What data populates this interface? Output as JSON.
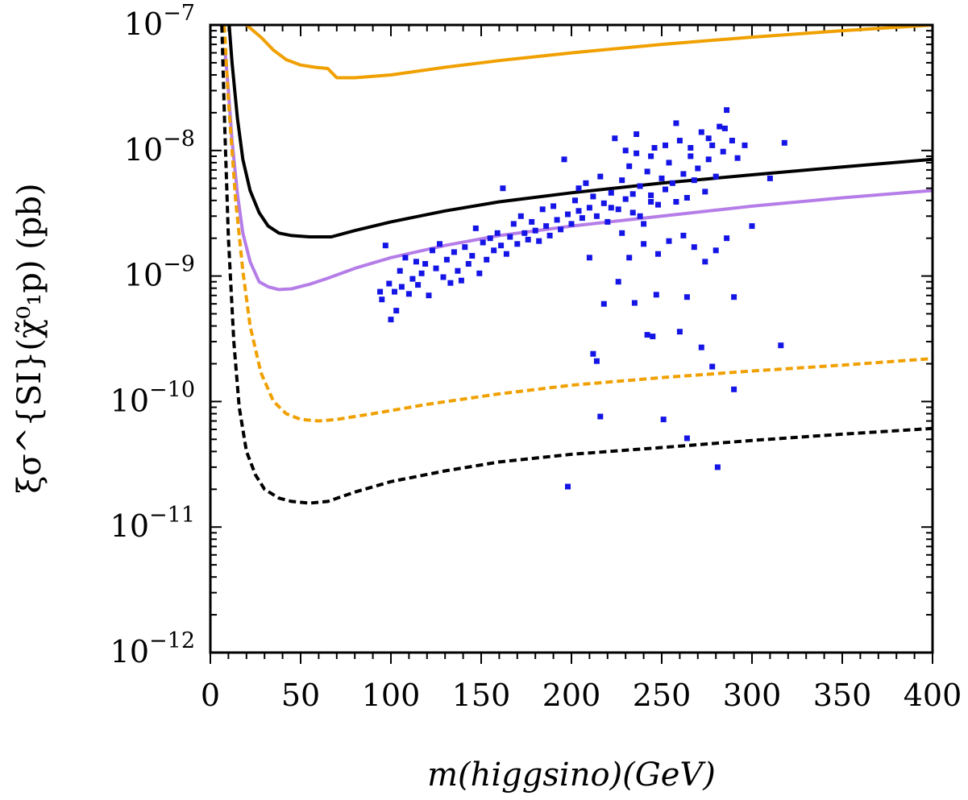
{
  "chart_data": {
    "type": "scatter",
    "xlabel": "m(higgsino)(GeV)",
    "ylabel": "ξσ^{SI}(χ̃⁰₁p) (pb)",
    "xlim": [
      0,
      400
    ],
    "ylim": [
      1e-12,
      1e-07
    ],
    "yscale": "log",
    "x_ticks": [
      0,
      50,
      100,
      150,
      200,
      250,
      300,
      350,
      400
    ],
    "x_tick_labels": [
      "0",
      "50",
      "100",
      "150",
      "200",
      "250",
      "300",
      "350",
      "400"
    ],
    "y_ticks": [
      {
        "value": 1e-12,
        "base": "10",
        "exp": "−12"
      },
      {
        "value": 1e-11,
        "base": "10",
        "exp": "−11"
      },
      {
        "value": 1e-10,
        "base": "10",
        "exp": "−10"
      },
      {
        "value": 1e-09,
        "base": "10",
        "exp": "−9"
      },
      {
        "value": 1e-08,
        "base": "10",
        "exp": "−8"
      },
      {
        "value": 1e-07,
        "base": "10",
        "exp": "−7"
      }
    ],
    "series": [
      {
        "name": "orange-solid",
        "type": "line",
        "color": "#f0a000",
        "dashed": false,
        "x": [
          8,
          14,
          20,
          28,
          35,
          42,
          50,
          58,
          65,
          70,
          80,
          100,
          130,
          160,
          200,
          250,
          300,
          350,
          400
        ],
        "y": [
          1.5e-07,
          1.2e-07,
          1e-07,
          8e-08,
          6.3e-08,
          5.3e-08,
          4.8e-08,
          4.6e-08,
          4.5e-08,
          3.8e-08,
          3.8e-08,
          4e-08,
          4.6e-08,
          5.2e-08,
          6e-08,
          7e-08,
          8e-08,
          9e-08,
          1e-07
        ]
      },
      {
        "name": "black-solid",
        "type": "line",
        "color": "#000000",
        "dashed": false,
        "x": [
          10,
          12,
          15,
          18,
          22,
          27,
          32,
          38,
          45,
          55,
          67,
          80,
          100,
          130,
          160,
          200,
          250,
          300,
          350,
          400
        ],
        "y": [
          1.2e-07,
          5e-08,
          1.8e-08,
          8.5e-09,
          4.8e-09,
          3.2e-09,
          2.5e-09,
          2.2e-09,
          2.1e-09,
          2.05e-09,
          2.05e-09,
          2.3e-09,
          2.7e-09,
          3.3e-09,
          3.9e-09,
          4.6e-09,
          5.5e-09,
          6.4e-09,
          7.4e-09,
          8.5e-09
        ]
      },
      {
        "name": "purple-solid",
        "type": "line",
        "color": "#b57de8",
        "dashed": false,
        "x": [
          8,
          10,
          12,
          15,
          18,
          22,
          27,
          32,
          38,
          45,
          55,
          65,
          80,
          100,
          130,
          160,
          200,
          250,
          300,
          350,
          400
        ],
        "y": [
          6.5e-08,
          3e-08,
          1.2e-08,
          4.5e-09,
          2.2e-09,
          1.3e-09,
          9e-10,
          8.2e-10,
          7.8e-10,
          7.9e-10,
          8.6e-10,
          9.6e-10,
          1.15e-09,
          1.4e-09,
          1.75e-09,
          2.1e-09,
          2.5e-09,
          3e-09,
          3.6e-09,
          4.2e-09,
          4.8e-09
        ]
      },
      {
        "name": "orange-dashed",
        "type": "line",
        "color": "#f0a000",
        "dashed": true,
        "x": [
          7,
          10,
          14,
          18,
          22,
          28,
          35,
          42,
          50,
          60,
          70,
          90,
          120,
          160,
          200,
          250,
          300,
          350,
          400
        ],
        "y": [
          1.5e-07,
          2.5e-08,
          4e-09,
          1.1e-09,
          4e-10,
          1.7e-10,
          1e-10,
          8e-11,
          7.2e-11,
          7e-11,
          7.2e-11,
          8e-11,
          9.5e-11,
          1.15e-10,
          1.35e-10,
          1.55e-10,
          1.75e-10,
          1.95e-10,
          2.2e-10
        ]
      },
      {
        "name": "black-dashed",
        "type": "line",
        "color": "#000000",
        "dashed": true,
        "x": [
          6,
          8,
          10,
          13,
          16,
          20,
          25,
          30,
          38,
          45,
          55,
          65,
          80,
          100,
          130,
          160,
          200,
          250,
          300,
          350,
          400
        ],
        "y": [
          1.5e-07,
          1.5e-08,
          2e-09,
          3e-10,
          9e-11,
          4e-11,
          2.6e-11,
          2e-11,
          1.7e-11,
          1.6e-11,
          1.55e-11,
          1.6e-11,
          1.9e-11,
          2.3e-11,
          2.8e-11,
          3.3e-11,
          3.8e-11,
          4.3e-11,
          4.9e-11,
          5.5e-11,
          6.1e-11
        ]
      },
      {
        "name": "model-points",
        "type": "scatter",
        "color": "#1414e6",
        "points": [
          [
            94,
            7.5e-10
          ],
          [
            95,
            6.5e-10
          ],
          [
            97,
            1.75e-09
          ],
          [
            100,
            4.5e-10
          ],
          [
            99,
            8.7e-10
          ],
          [
            102,
            7.5e-10
          ],
          [
            103,
            5.3e-10
          ],
          [
            105,
            1.1e-09
          ],
          [
            106,
            8.2e-10
          ],
          [
            108,
            1.4e-09
          ],
          [
            110,
            7.2e-10
          ],
          [
            112,
            9.5e-10
          ],
          [
            114,
            1.3e-09
          ],
          [
            115,
            8.5e-10
          ],
          [
            117,
            1.05e-09
          ],
          [
            119,
            1.25e-09
          ],
          [
            121,
            7e-10
          ],
          [
            123,
            1.6e-09
          ],
          [
            125,
            1.15e-09
          ],
          [
            127,
            1.8e-09
          ],
          [
            129,
            9.8e-10
          ],
          [
            131,
            1.35e-09
          ],
          [
            133,
            8.8e-10
          ],
          [
            135,
            1.55e-09
          ],
          [
            137,
            1.1e-09
          ],
          [
            139,
            9.2e-10
          ],
          [
            141,
            1.7e-09
          ],
          [
            143,
            1.25e-09
          ],
          [
            145,
            1.45e-09
          ],
          [
            147,
            2.4e-09
          ],
          [
            149,
            1.05e-09
          ],
          [
            151,
            1.85e-09
          ],
          [
            153,
            1.35e-09
          ],
          [
            155,
            2e-09
          ],
          [
            157,
            1.6e-09
          ],
          [
            159,
            2.2e-09
          ],
          [
            161,
            1.75e-09
          ],
          [
            162,
            5e-09
          ],
          [
            164,
            1.5e-09
          ],
          [
            166,
            2.05e-09
          ],
          [
            168,
            2.6e-09
          ],
          [
            170,
            1.8e-09
          ],
          [
            172,
            3e-09
          ],
          [
            174,
            2.2e-09
          ],
          [
            176,
            1.95e-09
          ],
          [
            178,
            2.7e-09
          ],
          [
            180,
            2.3e-09
          ],
          [
            182,
            1.9e-09
          ],
          [
            184,
            3.4e-09
          ],
          [
            186,
            2.5e-09
          ],
          [
            188,
            2.1e-09
          ],
          [
            190,
            3.6e-09
          ],
          [
            192,
            2.8e-09
          ],
          [
            194,
            2.35e-09
          ],
          [
            196,
            8.5e-09
          ],
          [
            198,
            3.1e-09
          ],
          [
            200,
            2.6e-09
          ],
          [
            202,
            4e-09
          ],
          [
            204,
            3.3e-09
          ],
          [
            206,
            2.9e-09
          ],
          [
            208,
            5.5e-09
          ],
          [
            210,
            3.5e-09
          ],
          [
            212,
            4.3e-09
          ],
          [
            214,
            3e-09
          ],
          [
            216,
            6.2e-09
          ],
          [
            218,
            3.8e-09
          ],
          [
            220,
            2.7e-09
          ],
          [
            222,
            4.6e-09
          ],
          [
            224,
            1.25e-08
          ],
          [
            226,
            3.4e-09
          ],
          [
            228,
            5.8e-09
          ],
          [
            230,
            4.1e-09
          ],
          [
            232,
            7.5e-09
          ],
          [
            234,
            3.2e-09
          ],
          [
            236,
            9.5e-09
          ],
          [
            238,
            5.2e-09
          ],
          [
            240,
            2.6e-09
          ],
          [
            242,
            6.8e-09
          ],
          [
            244,
            4.4e-09
          ],
          [
            246,
            1.05e-08
          ],
          [
            248,
            3.7e-09
          ],
          [
            250,
            6e-09
          ],
          [
            252,
            4.9e-09
          ],
          [
            254,
            8e-09
          ],
          [
            256,
            5.5e-09
          ],
          [
            258,
            3.9e-09
          ],
          [
            260,
            1.2e-08
          ],
          [
            262,
            6.5e-09
          ],
          [
            264,
            4.2e-09
          ],
          [
            266,
            9e-09
          ],
          [
            268,
            5.8e-09
          ],
          [
            270,
            7.2e-09
          ],
          [
            272,
            1.4e-08
          ],
          [
            274,
            4.7e-09
          ],
          [
            276,
            8.5e-09
          ],
          [
            278,
            1.1e-08
          ],
          [
            280,
            6.2e-09
          ],
          [
            282,
            1.55e-08
          ],
          [
            284,
            9.8e-09
          ],
          [
            286,
            2.1e-08
          ],
          [
            289,
            1.2e-08
          ],
          [
            292,
            8.7e-09
          ],
          [
            296,
            1.1e-08
          ],
          [
            300,
            2.5e-09
          ],
          [
            310,
            6e-09
          ],
          [
            318,
            1.15e-08
          ],
          [
            210,
            1.4e-09
          ],
          [
            218,
            6e-10
          ],
          [
            226,
            9e-10
          ],
          [
            232,
            1.4e-09
          ],
          [
            240,
            1.8e-09
          ],
          [
            248,
            1.5e-09
          ],
          [
            254,
            1.9e-09
          ],
          [
            262,
            2.1e-09
          ],
          [
            268,
            1.7e-09
          ],
          [
            274,
            1.3e-09
          ],
          [
            280,
            1.6e-09
          ],
          [
            286,
            2e-09
          ],
          [
            290,
            6.8e-10
          ],
          [
            235,
            6.1e-10
          ],
          [
            247,
            7.1e-10
          ],
          [
            264,
            6.8e-10
          ],
          [
            212,
            2.4e-10
          ],
          [
            214,
            2.1e-10
          ],
          [
            242,
            3.4e-10
          ],
          [
            245,
            3.3e-10
          ],
          [
            260,
            3.6e-10
          ],
          [
            272,
            2.7e-10
          ],
          [
            278,
            1.9e-10
          ],
          [
            290,
            1.25e-10
          ],
          [
            316,
            2.8e-10
          ],
          [
            216,
            7.6e-11
          ],
          [
            251,
            7.2e-11
          ],
          [
            264,
            5.1e-11
          ],
          [
            281,
            3e-11
          ],
          [
            198,
            2.1e-11
          ],
          [
            230,
            1e-08
          ],
          [
            236,
            1.35e-08
          ],
          [
            244,
            9e-09
          ],
          [
            252,
            1.1e-08
          ],
          [
            258,
            1.65e-08
          ],
          [
            266,
            1.05e-08
          ],
          [
            276,
            1.25e-08
          ],
          [
            285,
            1.5e-08
          ],
          [
            204,
            5e-09
          ],
          [
            222,
            3.5e-09
          ],
          [
            228,
            2.2e-09
          ],
          [
            234,
            4.5e-09
          ],
          [
            238,
            3e-09
          ],
          [
            244,
            3.9e-09
          ]
        ]
      }
    ]
  }
}
